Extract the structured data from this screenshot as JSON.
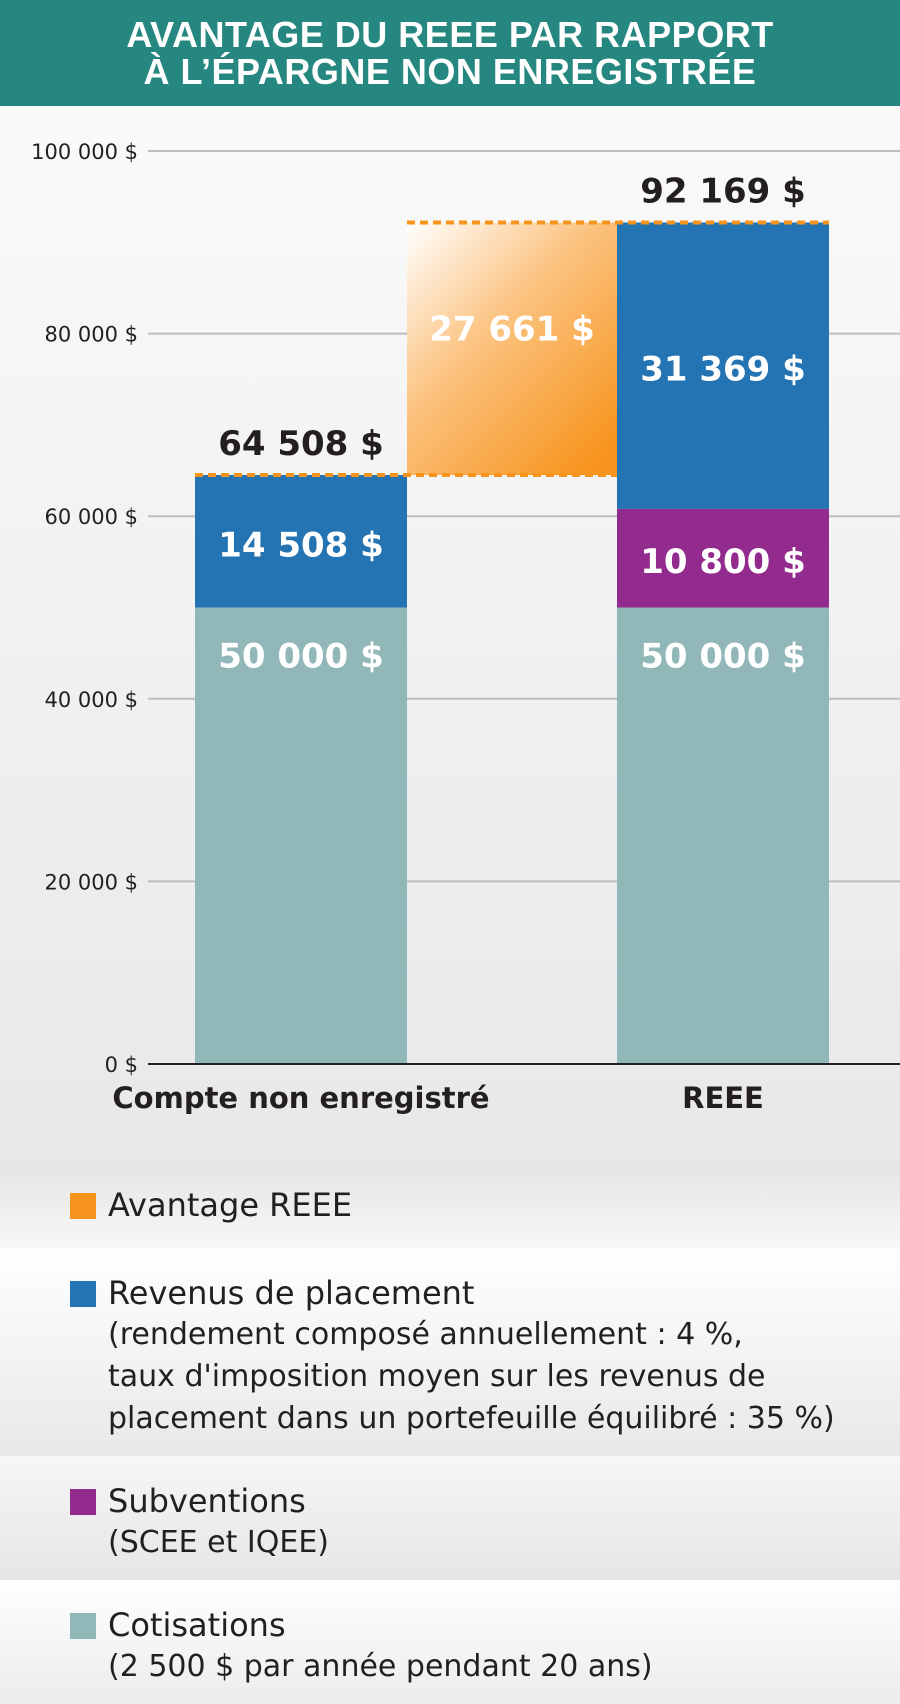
{
  "header": {
    "title_line1": "AVANTAGE DU REEE PAR RAPPORT",
    "title_line2": "À L’ÉPARGNE NON ENREGISTRÉE"
  },
  "colors": {
    "header_bg": "#25877f",
    "cotisations": "#92b7b8",
    "revenus": "#2473b2",
    "subventions": "#932a8d",
    "avantage": "#f7941d"
  },
  "chart_data": {
    "type": "bar",
    "stacked": true,
    "categories": [
      "Compte non enregistré",
      "REEE"
    ],
    "series": [
      {
        "name": "Cotisations",
        "values": [
          50000,
          50000
        ],
        "labels": [
          "50 000 $",
          "50 000 $"
        ]
      },
      {
        "name": "Subventions",
        "values": [
          0,
          10800
        ],
        "labels": [
          "",
          "10 800 $"
        ]
      },
      {
        "name": "Revenus de placement",
        "values": [
          14508,
          31369
        ],
        "labels": [
          "14 508 $",
          "31 369 $"
        ]
      }
    ],
    "totals": [
      64508,
      92169
    ],
    "total_labels": [
      "64 508 $",
      "92 169 $"
    ],
    "advantage": {
      "name": "Avantage REEE",
      "from": 64508,
      "to": 92169,
      "label": "27 661 $"
    },
    "ylim": [
      0,
      100000
    ],
    "yticks": [
      0,
      20000,
      40000,
      60000,
      80000,
      100000
    ],
    "ytick_labels": [
      "0 $",
      "20 000 $",
      "40 000 $",
      "60 000 $",
      "80 000 $",
      "100 000 $"
    ],
    "grid": true,
    "legend_position": "bottom"
  },
  "legend": [
    {
      "key": "avantage",
      "label": "Avantage REEE",
      "desc": []
    },
    {
      "key": "revenus",
      "label": "Revenus de placement",
      "desc": [
        "(rendement composé annuellement : 4 %,",
        "taux d'imposition moyen sur les revenus de",
        "placement dans un portefeuille équilibré : 35 %)"
      ]
    },
    {
      "key": "subventions",
      "label": "Subventions",
      "desc": [
        "(SCEE et IQEE)"
      ]
    },
    {
      "key": "cotisations",
      "label": "Cotisations",
      "desc": [
        "(2 500 $ par année pendant 20 ans)"
      ]
    }
  ]
}
